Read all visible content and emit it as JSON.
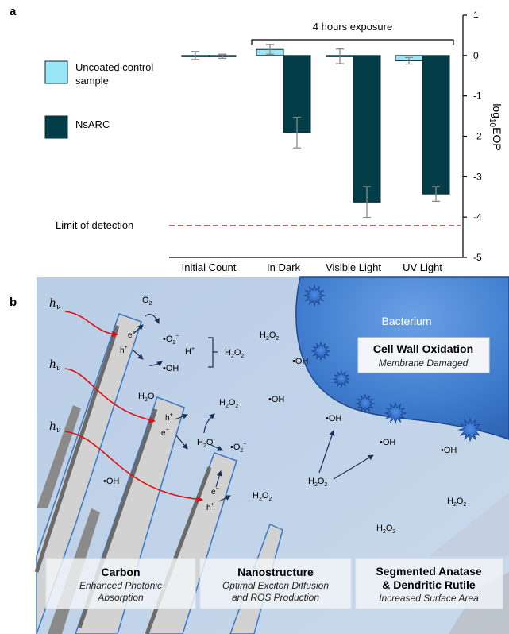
{
  "panel_a": {
    "label": "a",
    "exposure_label": "4 hours exposure",
    "limit_label": "Limit of detection",
    "legend": [
      {
        "name": "Uncoated control",
        "name2": "sample",
        "color": "#99e6f6"
      },
      {
        "name": "NsARC",
        "name2": "",
        "color": "#033e48"
      }
    ],
    "y_axis_label": {
      "base": "log",
      "sub": "10",
      "rest": "EOP"
    },
    "y_ticks": [
      "1",
      "0",
      "-1",
      "-2",
      "-3",
      "-4",
      "-5"
    ]
  },
  "chart_data": {
    "type": "bar",
    "categories": [
      "Initial Count",
      "In Dark",
      "Visible Light",
      "UV Light"
    ],
    "series": [
      {
        "name": "Uncoated control sample",
        "values": [
          0.0,
          0.15,
          -0.02,
          -0.13
        ],
        "errors": [
          0.1,
          0.12,
          0.18,
          0.08
        ]
      },
      {
        "name": "NsARC",
        "values": [
          -0.02,
          -1.91,
          -3.63,
          -3.43
        ],
        "errors": [
          0.05,
          0.38,
          0.38,
          0.18
        ]
      }
    ],
    "ylim": [
      -5,
      1
    ],
    "limit_of_detection": -4.21,
    "grid": false,
    "axis_position": "right",
    "legend_position": "left"
  },
  "panel_b": {
    "label": "b",
    "bacterium": "Bacterium",
    "cell_wall_title": "Cell Wall Oxidation",
    "cell_wall_sub": "Membrane Damaged",
    "hv": "h",
    "hv_sub": "ν",
    "species": {
      "o2": "O",
      "o2_sub": "2",
      "superoxide": "•O",
      "superoxide_sub": "2",
      "superoxide_sup": "−",
      "hydroxyl": "•OH",
      "h_plus": "H",
      "h_plus_sup": "+",
      "h_hole": "h",
      "electron": "e",
      "minus": "−",
      "h2o2_a": "H",
      "h2o2_b": "2",
      "h2o2_c": "O",
      "h2o2_d": "2",
      "water_a": "H",
      "water_b": "2",
      "water_c": "O"
    },
    "captions": [
      {
        "title": "Carbon",
        "line1": "Enhanced Photonic",
        "line2": "Absorption"
      },
      {
        "title": "Nanostructure",
        "line1": "Optimal Exciton Diffusion",
        "line2": "and ROS Production"
      },
      {
        "title": "Segmented Anatase",
        "title2": "& Dendritic Rutile",
        "line1": "Increased Surface Area"
      }
    ]
  }
}
